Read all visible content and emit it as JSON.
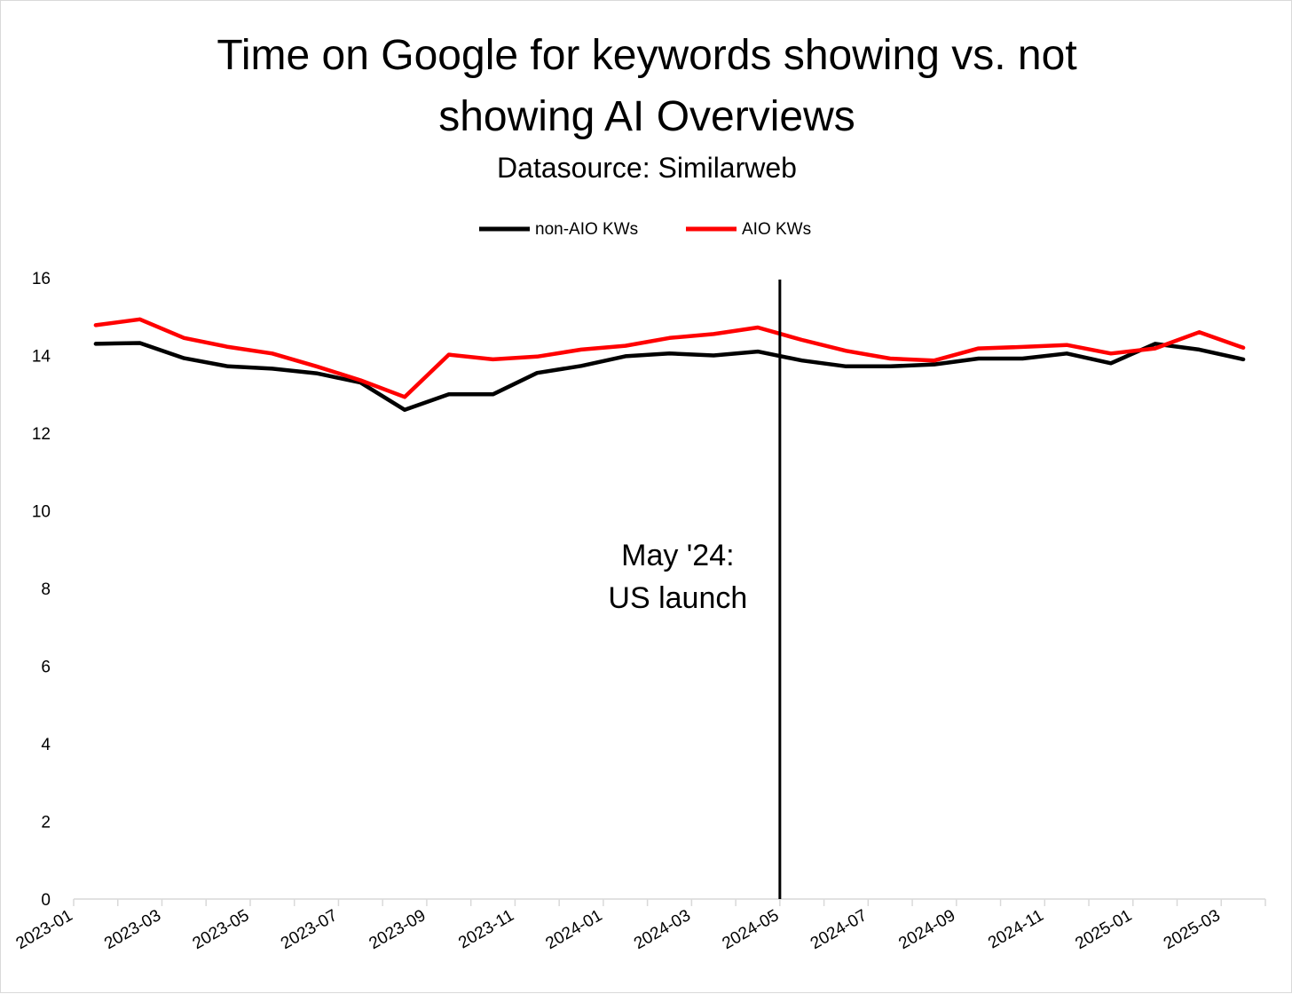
{
  "chart_data": {
    "type": "line",
    "title_line1": "Time on Google for keywords showing vs. not",
    "title_line2": "showing AI Overviews",
    "subtitle": "Datasource: Similarweb",
    "xlabel": "",
    "ylabel": "",
    "ylim": [
      0,
      16
    ],
    "yticks": [
      0,
      2,
      4,
      6,
      8,
      10,
      12,
      14,
      16
    ],
    "grid": false,
    "legend_position": "top-center",
    "x": [
      "2023-01",
      "2023-02",
      "2023-03",
      "2023-04",
      "2023-05",
      "2023-06",
      "2023-07",
      "2023-08",
      "2023-09",
      "2023-10",
      "2023-11",
      "2023-12",
      "2024-01",
      "2024-02",
      "2024-03",
      "2024-04",
      "2024-05",
      "2024-06",
      "2024-07",
      "2024-08",
      "2024-09",
      "2024-10",
      "2024-11",
      "2024-12",
      "2025-01",
      "2025-02",
      "2025-03"
    ],
    "xtick_labels": [
      "2023-01",
      "2023-03",
      "2023-05",
      "2023-07",
      "2023-09",
      "2023-11",
      "2024-01",
      "2024-03",
      "2024-05",
      "2024-07",
      "2024-09",
      "2024-11",
      "2025-01",
      "2025-03"
    ],
    "series": [
      {
        "name": "non-AIO KWs",
        "color": "#000000",
        "values": [
          14.3,
          14.32,
          13.93,
          13.72,
          13.66,
          13.54,
          13.3,
          12.6,
          13.0,
          13.0,
          13.55,
          13.73,
          13.98,
          14.05,
          14.0,
          14.1,
          13.87,
          13.72,
          13.72,
          13.77,
          13.92,
          13.92,
          14.05,
          13.8,
          14.3,
          14.15,
          13.9
        ]
      },
      {
        "name": "AIO KWs",
        "color": "#ff0000",
        "values": [
          14.78,
          14.93,
          14.45,
          14.22,
          14.05,
          13.72,
          13.36,
          12.93,
          14.02,
          13.9,
          13.97,
          14.15,
          14.25,
          14.45,
          14.55,
          14.72,
          14.4,
          14.12,
          13.92,
          13.87,
          14.18,
          14.22,
          14.27,
          14.05,
          14.18,
          14.6,
          14.2
        ]
      }
    ],
    "annotation": {
      "x": "2024-05",
      "label_line1": "May '24:",
      "label_line2": "US launch"
    }
  }
}
